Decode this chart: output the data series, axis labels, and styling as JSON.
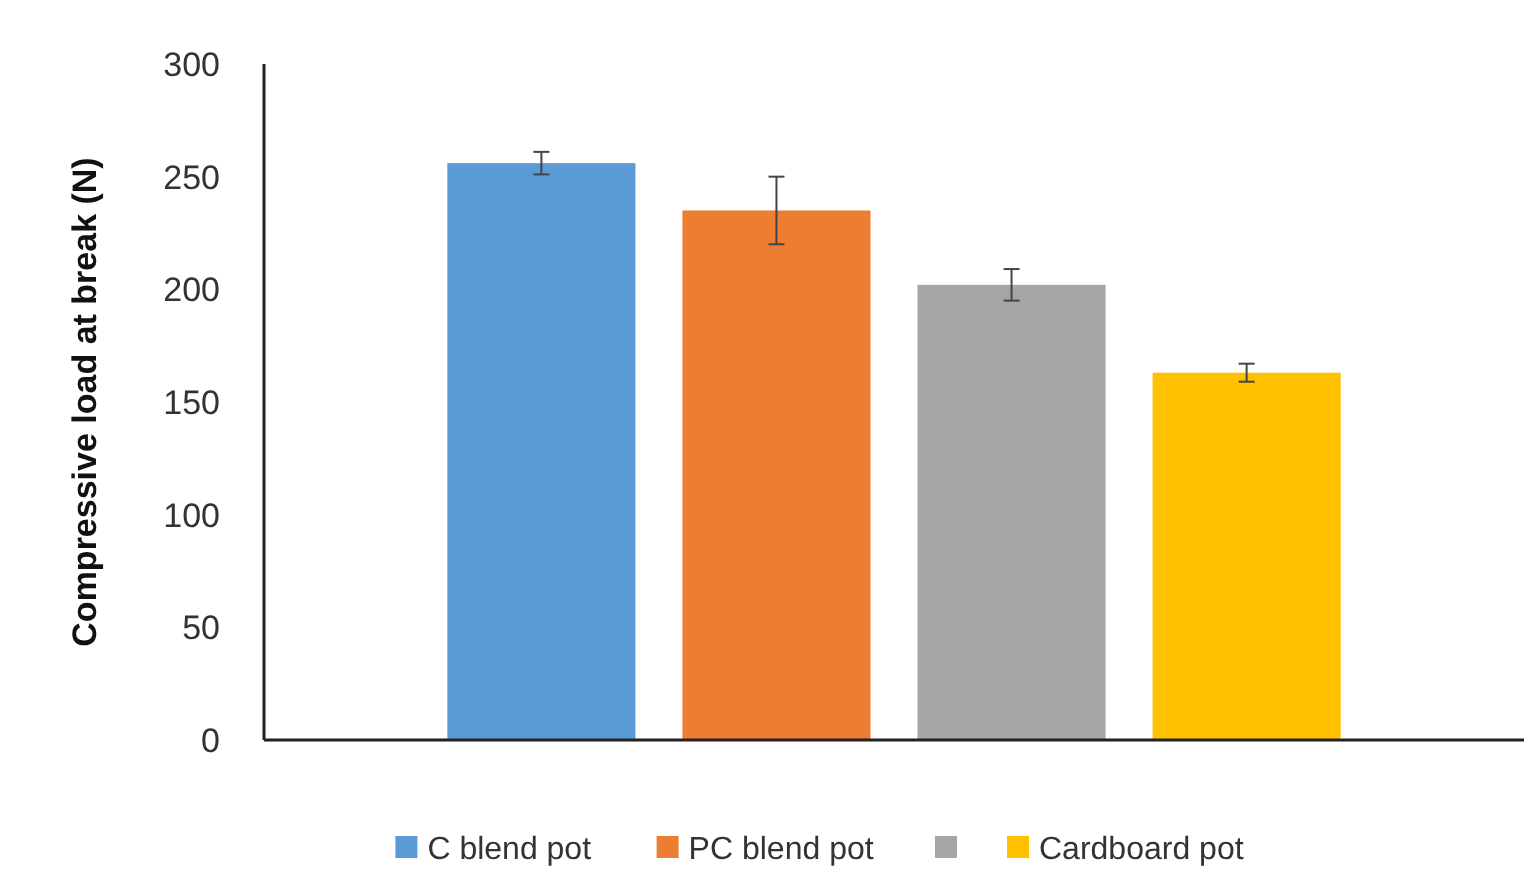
{
  "chart_data": {
    "type": "bar",
    "ylabel": "Compressive load at break (N)",
    "categories": [
      null
    ],
    "series": [
      {
        "name": "C blend pot",
        "color": "#5b9bd5",
        "values": [
          256
        ],
        "errors": [
          5
        ]
      },
      {
        "name": "PC blend pot",
        "color": "#ed7d31",
        "values": [
          235
        ],
        "errors": [
          15
        ]
      },
      {
        "color": "#a5a5a5",
        "values": [
          202
        ],
        "errors": [
          7
        ]
      },
      {
        "name": "Cardboard pot",
        "color": "#ffc000",
        "values": [
          163
        ],
        "errors": [
          4
        ]
      }
    ],
    "ylim": [
      0,
      300
    ],
    "yticks": [
      0,
      50,
      100,
      150,
      200,
      250,
      300
    ],
    "legend": "bottom"
  }
}
